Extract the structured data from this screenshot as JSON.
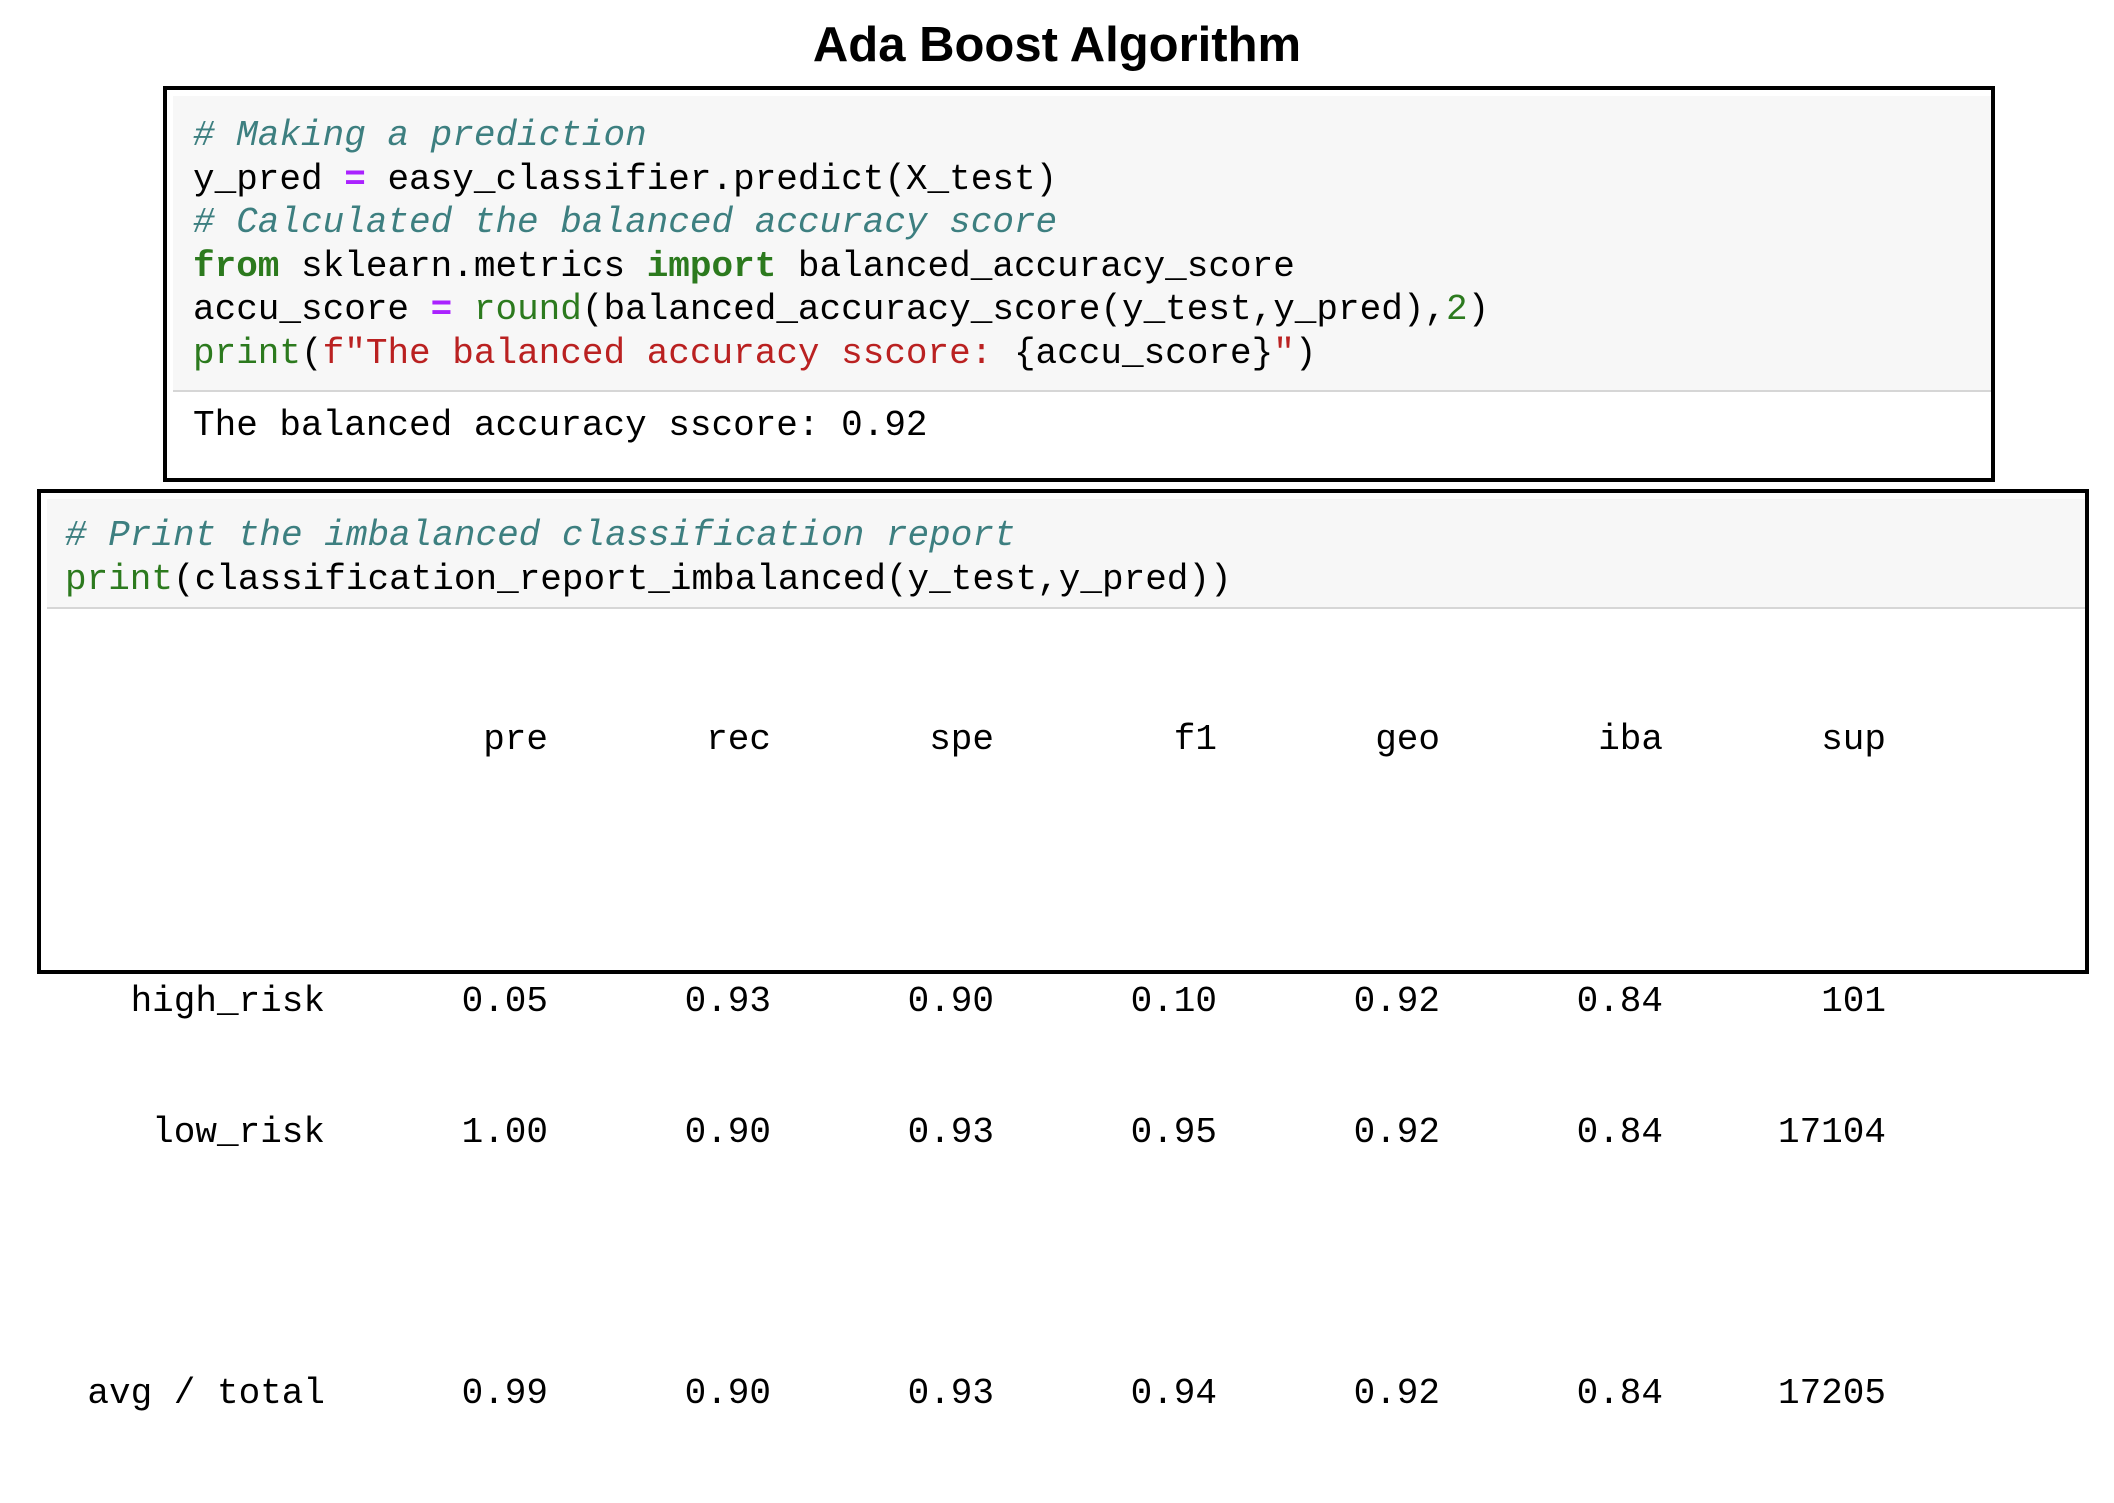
{
  "page": {
    "title": "Ada  Boost Algorithm"
  },
  "cell1": {
    "input": {
      "comment1": "# Making a prediction",
      "line2_a": "y_pred ",
      "line2_op": "=",
      "line2_b": " easy_classifier.predict(X_test)",
      "comment2": "# Calculated the balanced accuracy score",
      "line4_from": "from",
      "line4_mod": " sklearn.metrics ",
      "line4_import": "import",
      "line4_name": " balanced_accuracy_score",
      "line5_a": "accu_score ",
      "line5_op": "=",
      "line5_sp": " ",
      "line5_round": "round",
      "line5_b": "(balanced_accuracy_score(y_test,y_pred),",
      "line5_num": "2",
      "line5_c": ")",
      "line6_print": "print",
      "line6_paren": "(",
      "line6_str": "f\"The balanced accuracy sscore: ",
      "line6_interp": "{accu_score}",
      "line6_quote": "\"",
      "line6_close": ")"
    },
    "output": "The balanced accuracy sscore: 0.92"
  },
  "cell2": {
    "input": {
      "comment": "# Print the imbalanced classification report",
      "line2_print": "print",
      "line2_rest": "(classification_report_imbalanced(y_test,y_pred))"
    },
    "report": {
      "headers": [
        "pre",
        "rec",
        "spe",
        "f1",
        "geo",
        "iba",
        "sup"
      ],
      "rows": [
        {
          "label": "high_risk",
          "values": [
            "0.05",
            "0.93",
            "0.90",
            "0.10",
            "0.92",
            "0.84",
            "101"
          ]
        },
        {
          "label": "low_risk",
          "values": [
            "1.00",
            "0.90",
            "0.93",
            "0.95",
            "0.92",
            "0.84",
            "17104"
          ]
        }
      ],
      "total": {
        "label": "avg / total",
        "values": [
          "0.99",
          "0.90",
          "0.93",
          "0.94",
          "0.92",
          "0.84",
          "17205"
        ]
      }
    }
  }
}
